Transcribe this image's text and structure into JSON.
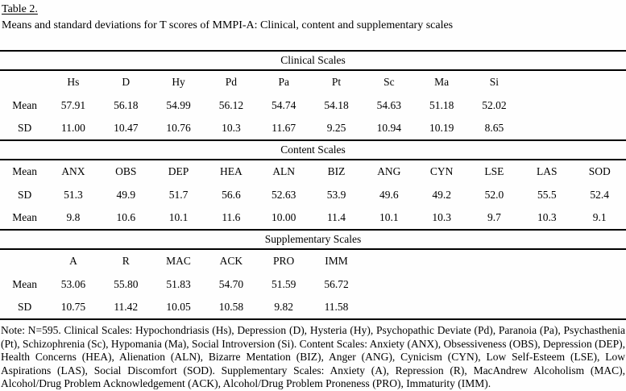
{
  "page": {
    "title": "Table 2.",
    "subtitle": "Means and standard deviations for T scores of MMPI-A: Clinical, content and supplementary scales",
    "note": "Note: N=595. Clinical Scales: Hypochondriasis (Hs), Depression (D), Hysteria (Hy), Psychopathic Deviate (Pd), Paranoia (Pa), Psychasthenia (Pt), Schizophrenia (Sc), Hypomania (Ma), Social Introversion (Si). Content Scales: Anxiety (ANX), Obsessiveness (OBS), Depression (DEP), Health Concerns (HEA), Alienation (ALN), Bizarre Mentation (BIZ), Anger (ANG), Cynicism (CYN), Low Self-Esteem (LSE), Low Aspirations (LAS), Social Discomfort (SOD). Supplementary Scales: Anxiety (A), Repression (R), MacAndrew Alcoholism (MAC), Alcohol/Drug Problem Acknowledgement (ACK), Alcohol/Drug Problem Proneness (PRO), Immaturity (IMM)."
  },
  "table": {
    "columns_total": 12,
    "sections": [
      {
        "title": "Clinical Scales",
        "header_label": "",
        "columns": [
          "Hs",
          "D",
          "Hy",
          "Pd",
          "Pa",
          "Pt",
          "Sc",
          "Ma",
          "Si"
        ],
        "rows": [
          {
            "label": "Mean",
            "values": [
              "57.91",
              "56.18",
              "54.99",
              "56.12",
              "54.74",
              "54.18",
              "54.63",
              "51.18",
              "52.02"
            ]
          },
          {
            "label": "SD",
            "values": [
              "11.00",
              "10.47",
              "10.76",
              "10.3",
              "11.67",
              "9.25",
              "10.94",
              "10.19",
              "8.65"
            ]
          }
        ]
      },
      {
        "title": "Content Scales",
        "header_label": "Mean",
        "columns": [
          "ANX",
          "OBS",
          "DEP",
          "HEA",
          "ALN",
          "BIZ",
          "ANG",
          "CYN",
          "LSE",
          "LAS",
          "SOD"
        ],
        "rows": [
          {
            "label": "SD",
            "values": [
              "51.3",
              "49.9",
              "51.7",
              "56.6",
              "52.63",
              "53.9",
              "49.6",
              "49.2",
              "52.0",
              "55.5",
              "52.4"
            ]
          },
          {
            "label": "Mean",
            "values": [
              "9.8",
              "10.6",
              "10.1",
              "11.6",
              "10.00",
              "11.4",
              "10.1",
              "10.3",
              "9.7",
              "10.3",
              "9.1"
            ]
          }
        ]
      },
      {
        "title": "Supplementary Scales",
        "header_label": "",
        "columns": [
          "A",
          "R",
          "MAC",
          "ACK",
          "PRO",
          "IMM"
        ],
        "rows": [
          {
            "label": "Mean",
            "values": [
              "53.06",
              "55.80",
              "51.83",
              "54.70",
              "51.59",
              "56.72"
            ]
          },
          {
            "label": "SD",
            "values": [
              "10.75",
              "11.42",
              "10.05",
              "10.58",
              "9.82",
              "11.58"
            ]
          }
        ]
      }
    ]
  }
}
